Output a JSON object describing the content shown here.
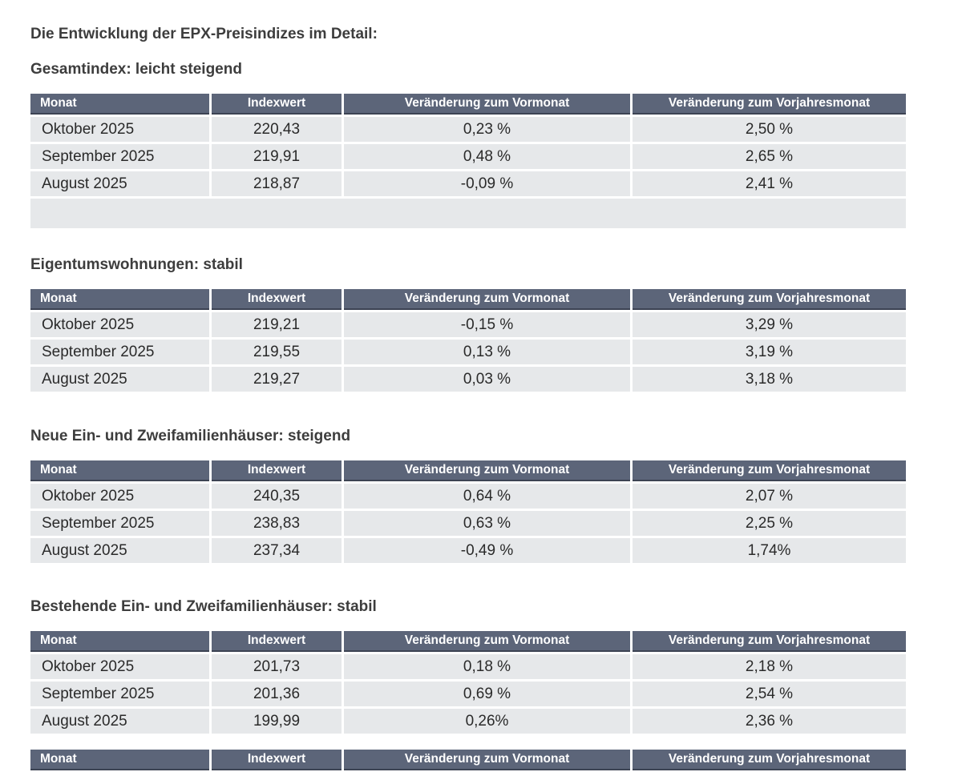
{
  "page": {
    "title": "Die Entwicklung der EPX-Preisindizes im Detail:"
  },
  "table_headers": {
    "monat": "Monat",
    "indexwert": "Indexwert",
    "vormonat": "Veränderung zum Vormonat",
    "vorjahr": "Veränderung zum Vorjahresmonat"
  },
  "sections": [
    {
      "heading": "Gesamtindex: leicht steigend",
      "rows": [
        {
          "monat": "Oktober 2025",
          "indexwert": "220,43",
          "vormonat": "0,23 %",
          "vorjahr": "2,50 %"
        },
        {
          "monat": "September 2025",
          "indexwert": "219,91",
          "vormonat": "0,48 %",
          "vorjahr": "2,65 %"
        },
        {
          "monat": "August 2025",
          "indexwert": "218,87",
          "vormonat": "-0,09 %",
          "vorjahr": "2,41 %"
        }
      ],
      "has_trailing_empty_row": true
    },
    {
      "heading": "Eigentumswohnungen: stabil",
      "rows": [
        {
          "monat": "Oktober 2025",
          "indexwert": "219,21",
          "vormonat": "-0,15 %",
          "vorjahr": "3,29 %"
        },
        {
          "monat": "September 2025",
          "indexwert": "219,55",
          "vormonat": "0,13 %",
          "vorjahr": "3,19 %"
        },
        {
          "monat": "August 2025",
          "indexwert": "219,27",
          "vormonat": "0,03 %",
          "vorjahr": "3,18 %"
        }
      ],
      "has_trailing_empty_row": false
    },
    {
      "heading": "Neue Ein- und Zweifamilienhäuser: steigend",
      "rows": [
        {
          "monat": "Oktober 2025",
          "indexwert": "240,35",
          "vormonat": "0,64 %",
          "vorjahr": "2,07 %"
        },
        {
          "monat": "September 2025",
          "indexwert": "238,83",
          "vormonat": "0,63 %",
          "vorjahr": "2,25 %"
        },
        {
          "monat": "August 2025",
          "indexwert": "237,34",
          "vormonat": "-0,49 %",
          "vorjahr": "1,74%"
        }
      ],
      "has_trailing_empty_row": false
    },
    {
      "heading": "Bestehende Ein- und Zweifamilienhäuser: stabil",
      "rows": [
        {
          "monat": "Oktober 2025",
          "indexwert": "201,73",
          "vormonat": "0,18 %",
          "vorjahr": "2,18 %"
        },
        {
          "monat": "September 2025",
          "indexwert": "201,36",
          "vormonat": "0,69 %",
          "vorjahr": "2,54 %"
        },
        {
          "monat": "August 2025",
          "indexwert": "199,99",
          "vormonat": "0,26%",
          "vorjahr": "2,36 %"
        }
      ],
      "has_trailing_empty_row": false
    }
  ],
  "truncated_table": {
    "visible": true
  },
  "colors": {
    "header_bg": "#5c6579",
    "header_border": "#3c4353",
    "row_bg": "#e6e8ea",
    "header_text": "#ffffff",
    "body_text": "#2a2a2a",
    "heading_text": "#3d3d3d"
  }
}
